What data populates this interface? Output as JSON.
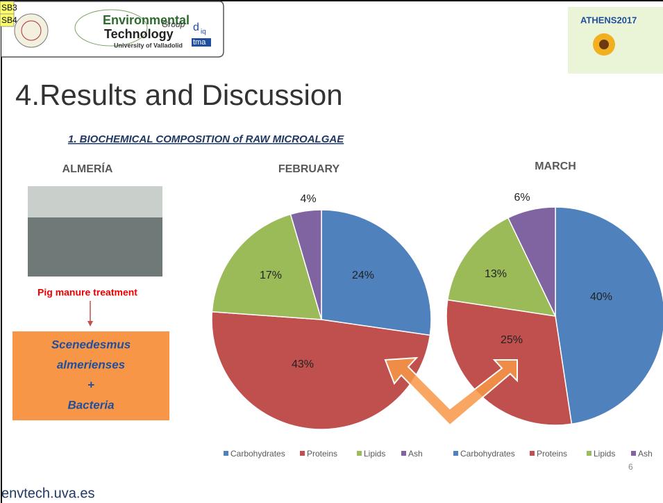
{
  "header": {
    "tags": [
      "SB3",
      "SB4"
    ],
    "logo": {
      "line1": "Environmental",
      "line2": "Technology",
      "group": "Group",
      "university": "University of Valladolid"
    },
    "logo2": [
      "d",
      "iq",
      "tma"
    ],
    "event": "ATHENS2017"
  },
  "slide": {
    "title": "4.Results and Discussion",
    "subtitle": "1. BIOCHEMICAL COMPOSITION of RAW MICROALGAE",
    "site": "ALMERÍA",
    "treatment": "Pig manure treatment",
    "organism": [
      "Scenedesmus",
      "almerienses",
      "+",
      "Bacteria"
    ],
    "page": "6",
    "footer": "envtech.uva.es"
  },
  "chart_data": [
    {
      "type": "pie",
      "title": "FEBRUARY",
      "categories": [
        "Carbohydrates",
        "Proteins",
        "Lipids",
        "Ash"
      ],
      "values": [
        24,
        43,
        17,
        4
      ],
      "value_labels": [
        "24%",
        "43%",
        "17%",
        "4%"
      ],
      "colors": [
        "#4f81bd",
        "#c0504d",
        "#9bbb59",
        "#8064a2"
      ]
    },
    {
      "type": "pie",
      "title": "MARCH",
      "categories": [
        "Carbohydrates",
        "Proteins",
        "Lipids",
        "Ash"
      ],
      "values": [
        40,
        25,
        13,
        6
      ],
      "value_labels": [
        "40%",
        "25%",
        "13%",
        "6%"
      ],
      "colors": [
        "#4f81bd",
        "#c0504d",
        "#9bbb59",
        "#8064a2"
      ]
    }
  ]
}
